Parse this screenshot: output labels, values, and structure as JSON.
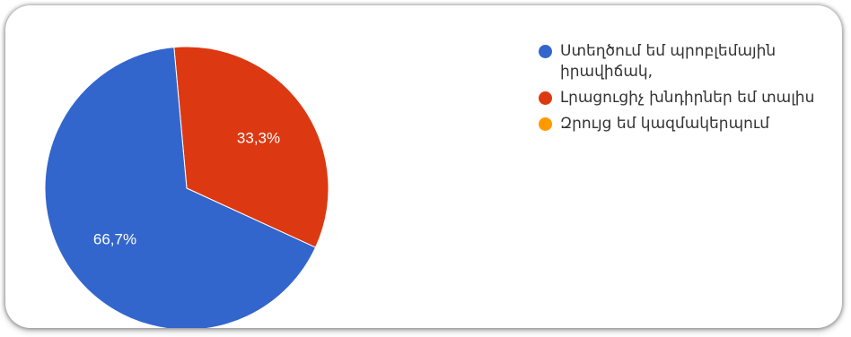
{
  "chart_data": {
    "type": "pie",
    "title": "",
    "slices": [
      {
        "label": "Ստեղծում եմ պրոբլեմային\nիրավիճակ,",
        "value": 66.7,
        "display": "66,7%",
        "color": "#3366cc"
      },
      {
        "label": "Լրացուցիչ խնդիրներ եմ տալիս",
        "value": 33.3,
        "display": "33,3%",
        "color": "#dc3912"
      },
      {
        "label": "Զրույց եմ կազմակերպում",
        "value": 0,
        "display": "",
        "color": "#ff9900"
      }
    ],
    "legend_position": "right"
  }
}
